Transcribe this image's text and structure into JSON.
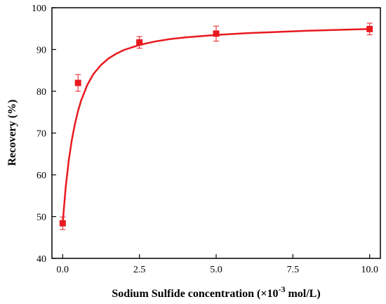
{
  "chart_data": {
    "type": "scatter",
    "title": "",
    "xlabel_main": "Sodium Sulfide concentration (×10",
    "xlabel_exp": "-3",
    "xlabel_unit": " mol/L)",
    "ylabel": "Recovery (%)",
    "xlim": [
      -0.35,
      10.35
    ],
    "ylim": [
      40,
      100
    ],
    "x_ticks": [
      0.0,
      2.5,
      5.0,
      7.5,
      10.0
    ],
    "x_tick_labels": [
      "0.0",
      "2.5",
      "5.0",
      "7.5",
      "10.0"
    ],
    "y_ticks": [
      40,
      50,
      60,
      70,
      80,
      90,
      100
    ],
    "y_tick_labels": [
      "40",
      "50",
      "60",
      "70",
      "80",
      "90",
      "100"
    ],
    "grid": false,
    "color": "#e8191f",
    "series": [
      {
        "x": [
          0.0,
          0.5,
          2.5,
          5.0,
          10.0
        ],
        "y": [
          48.4,
          82.0,
          91.7,
          93.8,
          94.9
        ],
        "err": [
          1.5,
          2.0,
          1.4,
          1.8,
          1.4
        ]
      }
    ],
    "fit_curve": {
      "x": [
        0.0,
        0.1,
        0.2,
        0.3,
        0.4,
        0.5,
        0.6,
        0.8,
        1.0,
        1.25,
        1.5,
        1.75,
        2.0,
        2.5,
        3.0,
        3.5,
        4.0,
        5.0,
        6.0,
        7.0,
        8.0,
        9.0,
        10.0
      ],
      "y": [
        48.4,
        57.2,
        63.6,
        68.4,
        72.2,
        75.3,
        77.8,
        81.5,
        84.1,
        86.3,
        87.9,
        89.0,
        89.9,
        91.1,
        91.9,
        92.5,
        92.9,
        93.5,
        93.9,
        94.2,
        94.5,
        94.7,
        94.9
      ]
    }
  }
}
